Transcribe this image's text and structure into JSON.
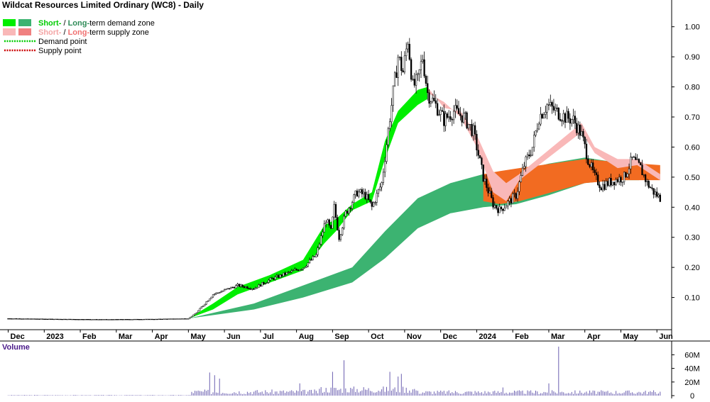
{
  "chart_data": {
    "type": "candlestick",
    "title": "Wildcat Resources Limited Ordinary (WC8) - Daily",
    "legend": [
      {
        "label_parts": [
          {
            "text": "Short-",
            "color": "#00cc00"
          },
          {
            "text": " / ",
            "color": "#000000"
          },
          {
            "text": "Long-",
            "color": "#2e8b57"
          },
          {
            "text": "term demand zone",
            "color": "#000000"
          }
        ],
        "swatches": [
          "#00ee00",
          "#3cb371"
        ]
      },
      {
        "label_parts": [
          {
            "text": "Short-",
            "color": "#f4a6a6"
          },
          {
            "text": " / ",
            "color": "#000000"
          },
          {
            "text": "Long-",
            "color": "#f07070"
          },
          {
            "text": "term supply zone",
            "color": "#000000"
          }
        ],
        "swatches": [
          "#f9b8b8",
          "#f08080"
        ]
      },
      {
        "label": "Demand point",
        "line_color": "#00cc00"
      },
      {
        "label": "Supply point",
        "line_color": "#cc0000"
      }
    ],
    "price_axis": {
      "ticks": [
        0.1,
        0.2,
        0.3,
        0.4,
        0.5,
        0.6,
        0.7,
        0.8,
        0.9,
        1.0
      ],
      "tick_labels": [
        "0.10",
        "0.20",
        "0.30",
        "0.40",
        "0.50",
        "0.60",
        "0.70",
        "0.80",
        "0.90",
        "1.00"
      ],
      "range": [
        0.0,
        1.07
      ]
    },
    "x_axis": {
      "labels": [
        "Dec",
        "2023",
        "Feb",
        "Mar",
        "Apr",
        "May",
        "Jun",
        "Jul",
        "Aug",
        "Sep",
        "Oct",
        "Nov",
        "Dec",
        "2024",
        "Feb",
        "Mar",
        "Apr",
        "May",
        "Jun"
      ],
      "label_day_index": [
        0,
        22,
        44,
        66,
        88,
        110,
        132,
        154,
        176,
        198,
        220,
        242,
        264,
        286,
        308,
        330,
        352,
        374,
        396
      ],
      "day_range": [
        -5,
        405
      ]
    },
    "price_anchors_close": [
      [
        0,
        0.03
      ],
      [
        30,
        0.028
      ],
      [
        60,
        0.027
      ],
      [
        90,
        0.028
      ],
      [
        110,
        0.03
      ],
      [
        115,
        0.05
      ],
      [
        120,
        0.08
      ],
      [
        125,
        0.11
      ],
      [
        130,
        0.12
      ],
      [
        140,
        0.14
      ],
      [
        150,
        0.13
      ],
      [
        160,
        0.16
      ],
      [
        170,
        0.18
      ],
      [
        180,
        0.2
      ],
      [
        188,
        0.24
      ],
      [
        194,
        0.36
      ],
      [
        197,
        0.32
      ],
      [
        199,
        0.4
      ],
      [
        202,
        0.3
      ],
      [
        206,
        0.38
      ],
      [
        213,
        0.45
      ],
      [
        218,
        0.44
      ],
      [
        222,
        0.4
      ],
      [
        228,
        0.48
      ],
      [
        233,
        0.7
      ],
      [
        238,
        0.9
      ],
      [
        241,
        0.85
      ],
      [
        244,
        0.96
      ],
      [
        247,
        0.8
      ],
      [
        250,
        0.82
      ],
      [
        253,
        0.9
      ],
      [
        256,
        0.78
      ],
      [
        262,
        0.73
      ],
      [
        266,
        0.69
      ],
      [
        272,
        0.72
      ],
      [
        278,
        0.7
      ],
      [
        284,
        0.65
      ],
      [
        290,
        0.5
      ],
      [
        296,
        0.41
      ],
      [
        300,
        0.39
      ],
      [
        306,
        0.42
      ],
      [
        310,
        0.44
      ],
      [
        315,
        0.54
      ],
      [
        320,
        0.6
      ],
      [
        324,
        0.7
      ],
      [
        329,
        0.74
      ],
      [
        334,
        0.72
      ],
      [
        340,
        0.7
      ],
      [
        345,
        0.69
      ],
      [
        350,
        0.64
      ],
      [
        354,
        0.56
      ],
      [
        358,
        0.5
      ],
      [
        362,
        0.47
      ],
      [
        370,
        0.49
      ],
      [
        376,
        0.5
      ],
      [
        381,
        0.56
      ],
      [
        386,
        0.53
      ],
      [
        390,
        0.48
      ],
      [
        394,
        0.45
      ],
      [
        398,
        0.43
      ]
    ],
    "short_term_demand_zone": [
      [
        110,
        0.03,
        0.03
      ],
      [
        125,
        0.06,
        0.08
      ],
      [
        140,
        0.11,
        0.135
      ],
      [
        160,
        0.15,
        0.175
      ],
      [
        180,
        0.19,
        0.225
      ],
      [
        193,
        0.28,
        0.34
      ],
      [
        200,
        0.32,
        0.36
      ],
      [
        210,
        0.39,
        0.41
      ],
      [
        222,
        0.42,
        0.45
      ],
      [
        230,
        0.56,
        0.62
      ],
      [
        238,
        0.68,
        0.72
      ],
      [
        250,
        0.74,
        0.79
      ],
      [
        256,
        0.76,
        0.8
      ]
    ],
    "long_term_demand_zone": [
      [
        110,
        0.03,
        0.03
      ],
      [
        150,
        0.06,
        0.08
      ],
      [
        180,
        0.1,
        0.14
      ],
      [
        210,
        0.15,
        0.2
      ],
      [
        230,
        0.23,
        0.32
      ],
      [
        250,
        0.33,
        0.43
      ],
      [
        270,
        0.38,
        0.48
      ],
      [
        290,
        0.4,
        0.51
      ],
      [
        310,
        0.41,
        0.52
      ],
      [
        330,
        0.44,
        0.545
      ],
      [
        352,
        0.48,
        0.565
      ],
      [
        370,
        0.49,
        0.55
      ],
      [
        385,
        0.49,
        0.54
      ]
    ],
    "short_term_supply_zone": [
      [
        256,
        0.8,
        0.78
      ],
      [
        266,
        0.73,
        0.75
      ],
      [
        276,
        0.72,
        0.7
      ],
      [
        286,
        0.64,
        0.6
      ],
      [
        296,
        0.52,
        0.45
      ],
      [
        304,
        0.48,
        0.42
      ],
      [
        312,
        0.51,
        0.49
      ],
      [
        350,
        0.68,
        0.65
      ],
      [
        358,
        0.6,
        0.58
      ],
      [
        372,
        0.56,
        0.53
      ],
      [
        384,
        0.56,
        0.54
      ],
      [
        398,
        0.51,
        0.49
      ]
    ],
    "long_term_supply_zone": [
      [
        290,
        0.51,
        0.42
      ],
      [
        300,
        0.52,
        0.41
      ],
      [
        312,
        0.53,
        0.42
      ],
      [
        352,
        0.56,
        0.48
      ],
      [
        372,
        0.55,
        0.49
      ],
      [
        385,
        0.545,
        0.49
      ],
      [
        398,
        0.54,
        0.49
      ]
    ],
    "volume": {
      "label": "Volume",
      "ticks": [
        0,
        20,
        40,
        60
      ],
      "tick_labels": [
        "0",
        "20M",
        "40M",
        "60M"
      ],
      "range_millions": [
        0,
        75
      ],
      "spikes_millions": [
        [
          123,
          34
        ],
        [
          126,
          30
        ],
        [
          129,
          25
        ],
        [
          178,
          18
        ],
        [
          198,
          35
        ],
        [
          205,
          52
        ],
        [
          233,
          35
        ],
        [
          238,
          28
        ],
        [
          240,
          32
        ],
        [
          302,
          12
        ],
        [
          330,
          18
        ],
        [
          336,
          72
        ]
      ]
    }
  }
}
